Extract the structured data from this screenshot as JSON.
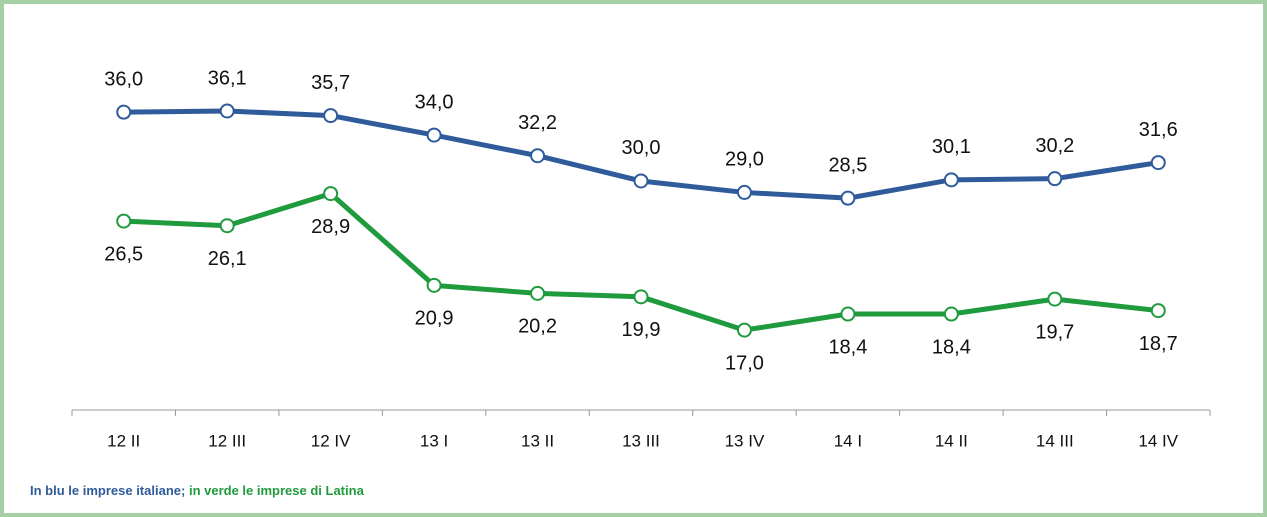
{
  "chart_data": {
    "type": "line",
    "categories": [
      "12 II",
      "12 III",
      "12 IV",
      "13 I",
      "13 II",
      "13 III",
      "13 IV",
      "14 I",
      "14 II",
      "14 III",
      "14 IV"
    ],
    "series": [
      {
        "color": "#2f5b9b",
        "values": [
          36.0,
          36.1,
          35.7,
          34.0,
          32.2,
          30.0,
          29.0,
          28.5,
          30.1,
          30.2,
          31.6
        ],
        "value_labels": [
          "36,0",
          "36,1",
          "35,7",
          "34,0",
          "32,2",
          "30,0",
          "29,0",
          "28,5",
          "30,1",
          "30,2",
          "31,6"
        ]
      },
      {
        "color": "#1f9a3d",
        "values": [
          26.5,
          26.1,
          28.9,
          20.9,
          20.2,
          19.9,
          17.0,
          18.4,
          18.4,
          19.7,
          18.7
        ],
        "value_labels": [
          "26,5",
          "26,1",
          "28,9",
          "20,9",
          "20,2",
          "19,9",
          "17,0",
          "18,4",
          "18,4",
          "19,7",
          "18,7"
        ]
      }
    ],
    "note": [
      {
        "text": "In blu le imprese italiane;",
        "color": "#2f5b9b"
      },
      {
        "text": "in verde le imprese di Latina",
        "color": "#1f9a3d"
      }
    ]
  }
}
